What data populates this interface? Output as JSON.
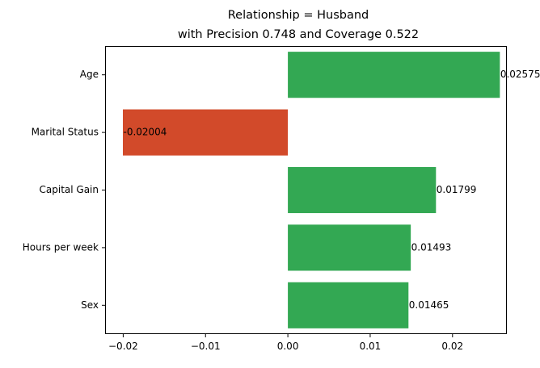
{
  "chart_data": {
    "type": "bar",
    "orientation": "horizontal",
    "title": "Relationship = Husband",
    "subtitle": "with Precision 0.748 and Coverage 0.522",
    "categories": [
      "Age",
      "Marital Status",
      "Capital Gain",
      "Hours per week",
      "Sex"
    ],
    "values": [
      0.02575,
      -0.02004,
      0.01799,
      0.01493,
      0.01465
    ],
    "value_labels": [
      "0.02575",
      "-0.02004",
      "0.01799",
      "0.01493",
      "0.01465"
    ],
    "xlim": [
      -0.0222,
      0.0266
    ],
    "xticks": [
      -0.02,
      -0.01,
      0.0,
      0.01,
      0.02
    ],
    "xtick_labels": [
      "−0.02",
      "−0.01",
      "0.00",
      "0.01",
      "0.02"
    ],
    "colors": {
      "positive": "#33a853",
      "negative": "#d24a2a",
      "axis": "#000000"
    },
    "grid": false
  }
}
